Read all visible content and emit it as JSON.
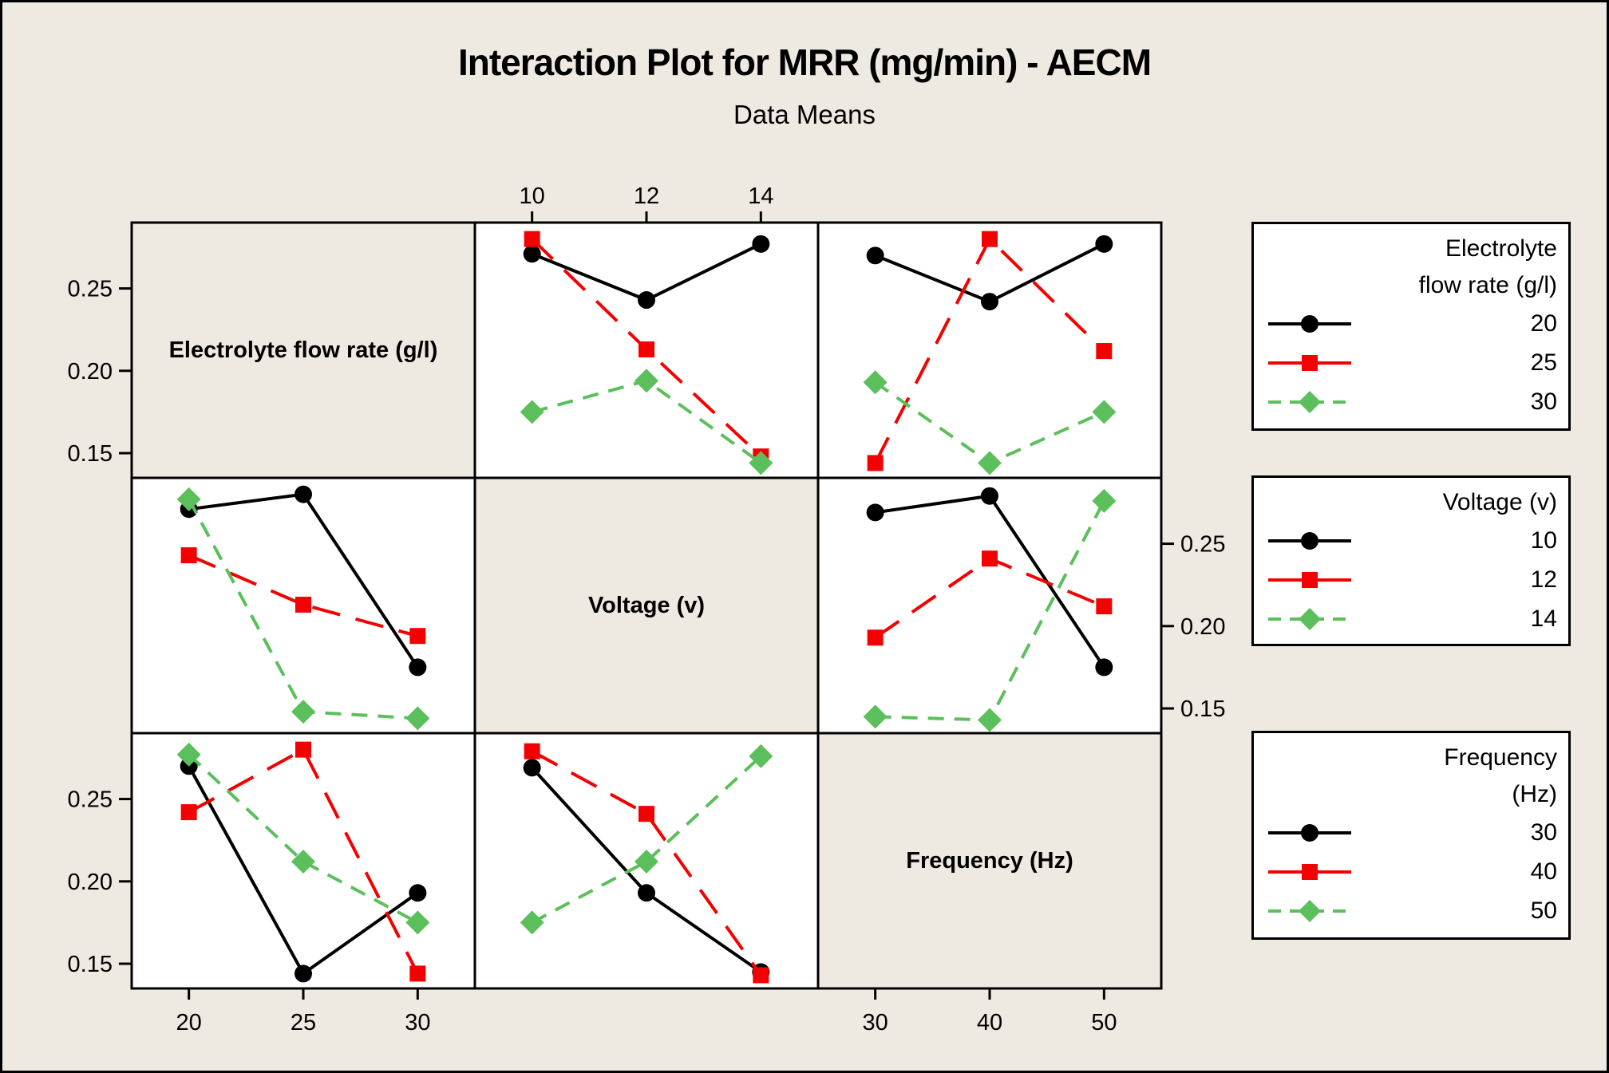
{
  "chart_data": {
    "type": "line",
    "title": "Interaction Plot for MRR (mg/min) - AECM",
    "subtitle": "Data Means",
    "grid": "3x3 interaction plot matrix, diagonal cells hold factor names",
    "ylim": [
      0.135,
      0.29
    ],
    "y_tick_values": [
      0.25,
      0.2,
      0.15
    ],
    "factors": [
      {
        "label": "Electrolyte flow rate (g/l)",
        "levels": [
          "20",
          "25",
          "30"
        ]
      },
      {
        "label": "Voltage (v)",
        "levels": [
          "10",
          "12",
          "14"
        ]
      },
      {
        "label": "Frequency (Hz)",
        "levels": [
          "30",
          "40",
          "50"
        ]
      }
    ],
    "series_styles": [
      {
        "name": "level-1",
        "color": "#000000",
        "marker": "circle",
        "line": "solid"
      },
      {
        "name": "level-2",
        "color": "#f50000",
        "marker": "square",
        "line": "long-dash"
      },
      {
        "name": "level-3",
        "color": "#5bbf5b",
        "marker": "diamond",
        "line": "dash"
      }
    ],
    "panels": [
      {
        "id": "flowrate-by-voltage",
        "row": 0,
        "col": 1,
        "x_factor": "Voltage (v)",
        "x_levels": [
          "10",
          "12",
          "14"
        ],
        "line_factor": "Electrolyte flow rate (g/l)",
        "series": [
          {
            "level": "20",
            "values": [
              0.271,
              0.243,
              0.277
            ]
          },
          {
            "level": "25",
            "values": [
              0.28,
              0.213,
              0.148
            ]
          },
          {
            "level": "30",
            "values": [
              0.175,
              0.194,
              0.144
            ]
          }
        ]
      },
      {
        "id": "flowrate-by-frequency",
        "row": 0,
        "col": 2,
        "x_factor": "Frequency (Hz)",
        "x_levels": [
          "30",
          "40",
          "50"
        ],
        "line_factor": "Electrolyte flow rate (g/l)",
        "series": [
          {
            "level": "20",
            "values": [
              0.27,
              0.242,
              0.277
            ]
          },
          {
            "level": "25",
            "values": [
              0.144,
              0.28,
              0.212
            ]
          },
          {
            "level": "30",
            "values": [
              0.193,
              0.144,
              0.175
            ]
          }
        ]
      },
      {
        "id": "voltage-by-flowrate",
        "row": 1,
        "col": 0,
        "x_factor": "Electrolyte flow rate (g/l)",
        "x_levels": [
          "20",
          "25",
          "30"
        ],
        "line_factor": "Voltage (v)",
        "series": [
          {
            "level": "10",
            "values": [
              0.271,
              0.28,
              0.175
            ]
          },
          {
            "level": "12",
            "values": [
              0.243,
              0.213,
              0.194
            ]
          },
          {
            "level": "14",
            "values": [
              0.277,
              0.148,
              0.144
            ]
          }
        ]
      },
      {
        "id": "voltage-by-frequency",
        "row": 1,
        "col": 2,
        "x_factor": "Frequency (Hz)",
        "x_levels": [
          "30",
          "40",
          "50"
        ],
        "line_factor": "Voltage (v)",
        "series": [
          {
            "level": "10",
            "values": [
              0.269,
              0.279,
              0.175
            ]
          },
          {
            "level": "12",
            "values": [
              0.193,
              0.241,
              0.212
            ]
          },
          {
            "level": "14",
            "values": [
              0.145,
              0.143,
              0.276
            ]
          }
        ]
      },
      {
        "id": "frequency-by-flowrate",
        "row": 2,
        "col": 0,
        "x_factor": "Electrolyte flow rate (g/l)",
        "x_levels": [
          "20",
          "25",
          "30"
        ],
        "line_factor": "Frequency (Hz)",
        "series": [
          {
            "level": "30",
            "values": [
              0.27,
              0.144,
              0.193
            ]
          },
          {
            "level": "40",
            "values": [
              0.242,
              0.28,
              0.144
            ]
          },
          {
            "level": "50",
            "values": [
              0.277,
              0.212,
              0.175
            ]
          }
        ]
      },
      {
        "id": "frequency-by-voltage",
        "row": 2,
        "col": 1,
        "x_factor": "Voltage (v)",
        "x_levels": [
          "10",
          "12",
          "14"
        ],
        "line_factor": "Frequency (Hz)",
        "series": [
          {
            "level": "30",
            "values": [
              0.269,
              0.193,
              0.145
            ]
          },
          {
            "level": "40",
            "values": [
              0.279,
              0.241,
              0.143
            ]
          },
          {
            "level": "50",
            "values": [
              0.175,
              0.212,
              0.276
            ]
          }
        ]
      }
    ]
  },
  "axes": {
    "top": {
      "ticks": [
        "10",
        "12",
        "14"
      ]
    },
    "bottom_left": {
      "ticks": [
        "20",
        "25",
        "30"
      ]
    },
    "bottom_right": {
      "ticks": [
        "30",
        "40",
        "50"
      ]
    },
    "left_top": {
      "ticks": [
        "0.25",
        "0.20",
        "0.15"
      ]
    },
    "left_bottom": {
      "ticks": [
        "0.25",
        "0.20",
        "0.15"
      ]
    },
    "right_middle": {
      "ticks": [
        "0.25",
        "0.20",
        "0.15"
      ]
    }
  },
  "legends": [
    {
      "title_lines": [
        "Electrolyte",
        "flow rate (g/l)"
      ],
      "entries": [
        {
          "label": "20"
        },
        {
          "label": "25"
        },
        {
          "label": "30"
        }
      ]
    },
    {
      "title_lines": [
        "Voltage (v)"
      ],
      "entries": [
        {
          "label": "10"
        },
        {
          "label": "12"
        },
        {
          "label": "14"
        }
      ]
    },
    {
      "title_lines": [
        "Frequency",
        "(Hz)"
      ],
      "entries": [
        {
          "label": "30"
        },
        {
          "label": "40"
        },
        {
          "label": "50"
        }
      ]
    }
  ],
  "colors": {
    "background": "#efeae1",
    "panel_fill": "#ffffff",
    "frame": "#000000",
    "series_black": "#000000",
    "series_red": "#f50000",
    "series_green": "#5bbf5b"
  }
}
